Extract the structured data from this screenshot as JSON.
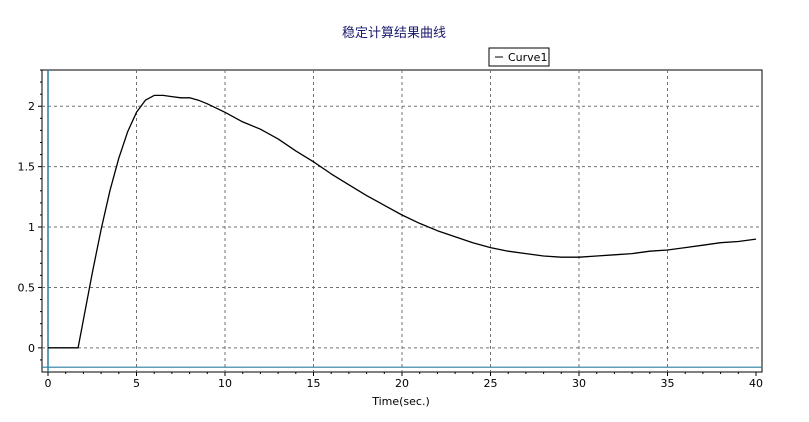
{
  "chart_data": {
    "type": "line",
    "title": "稳定计算结果曲线",
    "xlabel": "Time(sec.)",
    "ylabel": "",
    "xlim": [
      0,
      40
    ],
    "ylim": [
      -0.2,
      2.3
    ],
    "x_ticks": [
      0,
      5,
      10,
      15,
      20,
      25,
      30,
      35,
      40
    ],
    "y_ticks": [
      0,
      0.5,
      1,
      1.5,
      2
    ],
    "x_tick_labels": [
      "0",
      "5",
      "10",
      "15",
      "20",
      "25",
      "30",
      "35",
      "40"
    ],
    "y_tick_labels": [
      "0",
      "0.5",
      "1",
      "1.5",
      "2"
    ],
    "grid": true,
    "legend_position": "top-right",
    "reference_lines": {
      "vertical_x": 0,
      "horizontal_y": -0.16,
      "color": "#2a7fa0"
    },
    "series": [
      {
        "name": "Curve1",
        "color": "#000000",
        "x": [
          0,
          1.7,
          2.5,
          3.0,
          3.5,
          4.0,
          4.5,
          5.0,
          5.5,
          6.0,
          6.5,
          7.0,
          7.5,
          8.0,
          8.5,
          9.0,
          10,
          11,
          12,
          13,
          14,
          15,
          16,
          17,
          18,
          19,
          20,
          21,
          22,
          23,
          24,
          25,
          26,
          27,
          28,
          29,
          30,
          31,
          32,
          33,
          34,
          35,
          36,
          37,
          38,
          39,
          40
        ],
        "y": [
          0,
          0,
          0.62,
          0.98,
          1.3,
          1.57,
          1.79,
          1.95,
          2.05,
          2.09,
          2.09,
          2.08,
          2.07,
          2.07,
          2.05,
          2.02,
          1.95,
          1.87,
          1.81,
          1.73,
          1.63,
          1.54,
          1.44,
          1.35,
          1.26,
          1.18,
          1.1,
          1.03,
          0.97,
          0.92,
          0.87,
          0.83,
          0.8,
          0.78,
          0.76,
          0.75,
          0.75,
          0.76,
          0.77,
          0.78,
          0.8,
          0.81,
          0.83,
          0.85,
          0.87,
          0.88,
          0.9
        ]
      }
    ]
  }
}
